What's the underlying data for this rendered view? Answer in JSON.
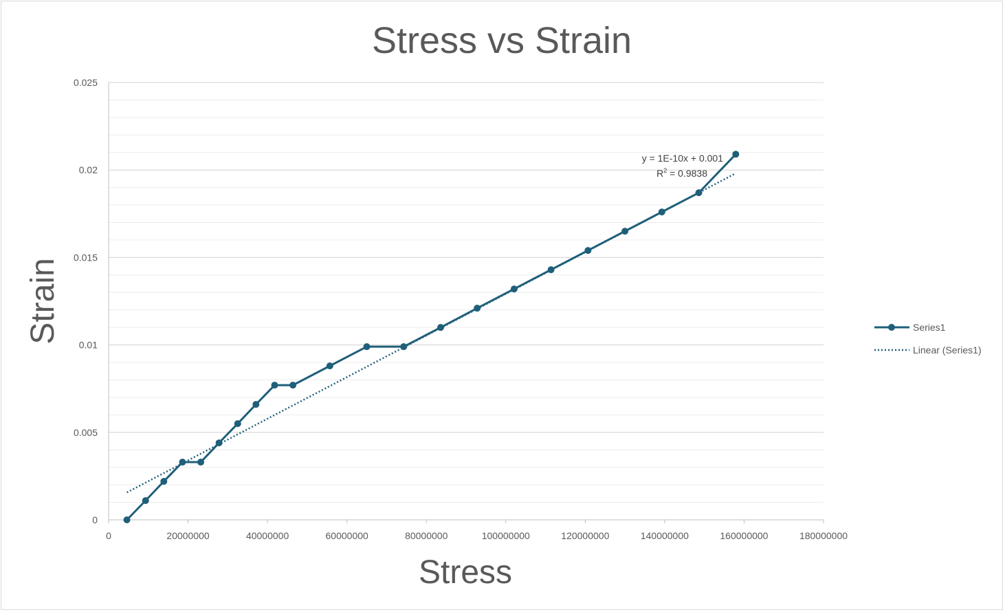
{
  "chart_data": {
    "type": "scatter",
    "title": "Stress vs Strain",
    "xlabel": "Stress",
    "ylabel": "Strain",
    "xlim": [
      0,
      180000000
    ],
    "ylim": [
      0,
      0.025
    ],
    "x_ticks": [
      "0",
      "20000000",
      "40000000",
      "60000000",
      "80000000",
      "100000000",
      "120000000",
      "140000000",
      "160000000",
      "180000000"
    ],
    "y_ticks": [
      "0",
      "0.005",
      "0.01",
      "0.015",
      "0.02",
      "0.025"
    ],
    "grid": true,
    "legend_position": "right",
    "series": [
      {
        "name": "Series1",
        "color": "#1f5f7a",
        "style": "line-with-markers",
        "x": [
          4600000,
          9300000,
          13900000,
          18600000,
          23200000,
          27800000,
          32500000,
          37100000,
          41800000,
          46400000,
          55700000,
          65000000,
          74300000,
          83600000,
          92800000,
          102100000,
          111400000,
          120700000,
          130000000,
          139300000,
          148600000,
          157900000
        ],
        "values": [
          0,
          0.0011,
          0.0022,
          0.0033,
          0.0033,
          0.0044,
          0.0055,
          0.0066,
          0.0077,
          0.0077,
          0.0088,
          0.0099,
          0.0099,
          0.011,
          0.0121,
          0.0132,
          0.0143,
          0.0154,
          0.0165,
          0.0176,
          0.0187,
          0.0209
        ]
      }
    ],
    "trendline": {
      "name": "Linear (Series1)",
      "color": "#1f5f7a",
      "style": "dotted",
      "slope": 1.19e-10,
      "intercept": 0.00102,
      "x_range": [
        4600000,
        157900000
      ],
      "equation": "y = 1E-10x + 0.001",
      "r2_label": "R",
      "r2_sup": "2",
      "r2_value": " = 0.9838"
    }
  }
}
